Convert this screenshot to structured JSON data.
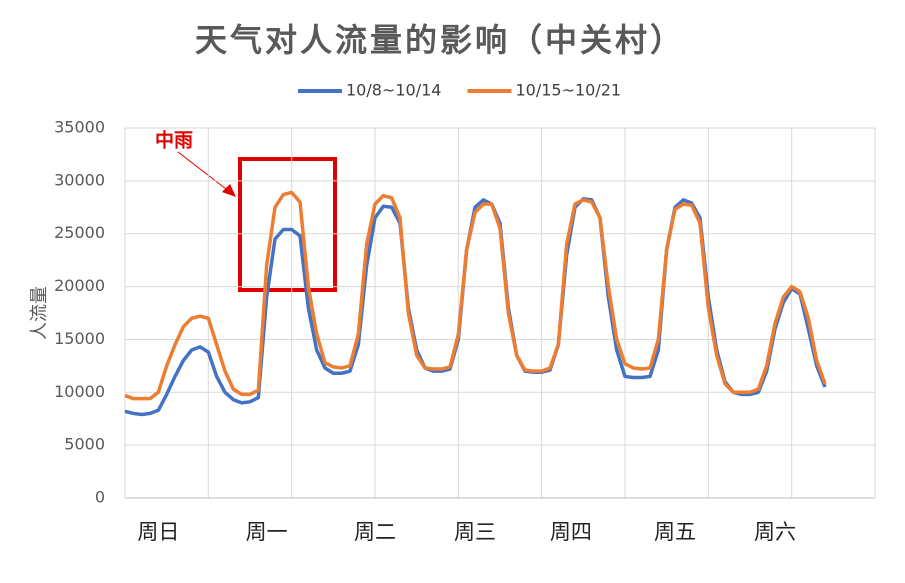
{
  "chart_data": {
    "type": "line",
    "title": "天气对人流量的影响（中关村）",
    "y_label": "人流量",
    "annotation": "中雨",
    "x": [
      0,
      2,
      4,
      6,
      8,
      10,
      12,
      14,
      16,
      18,
      20,
      22,
      24,
      26,
      28,
      30,
      32,
      34,
      36,
      38,
      40,
      42,
      44,
      46,
      48,
      50,
      52,
      54,
      56,
      58,
      60,
      62,
      64,
      66,
      68,
      70,
      72,
      74,
      76,
      78,
      80,
      82,
      84,
      86,
      88,
      90,
      92,
      94,
      96,
      98,
      100,
      102,
      104,
      106,
      108,
      110,
      112,
      114,
      116,
      118,
      120,
      122,
      124,
      126,
      128,
      130,
      132,
      134,
      136,
      138,
      140,
      142,
      144,
      146,
      148,
      150,
      152,
      154,
      156,
      158,
      160,
      162,
      164,
      166,
      168
    ],
    "series": [
      {
        "name": "10/8~10/14",
        "color": "#4472c4",
        "values": [
          8200,
          8000,
          7900,
          8000,
          8300,
          9800,
          11500,
          13000,
          14000,
          14300,
          13800,
          11500,
          10000,
          9300,
          9000,
          9100,
          9500,
          19000,
          24500,
          25400,
          25400,
          24800,
          18000,
          14000,
          12300,
          11800,
          11800,
          12000,
          14500,
          22000,
          26500,
          27600,
          27500,
          26000,
          18000,
          14000,
          12300,
          12000,
          12000,
          12200,
          15000,
          23500,
          27500,
          28200,
          27800,
          26000,
          18000,
          13500,
          12000,
          11900,
          11900,
          12100,
          14500,
          23000,
          27500,
          28300,
          28200,
          26500,
          19000,
          14000,
          11500,
          11400,
          11400,
          11500,
          14000,
          23500,
          27500,
          28200,
          27900,
          26500,
          19000,
          14000,
          11000,
          10000,
          9800,
          9800,
          10000,
          12000,
          16000,
          18500,
          19800,
          19300,
          16000,
          12500,
          10500
        ]
      },
      {
        "name": "10/15~10/21",
        "color": "#ed7d31",
        "values": [
          9700,
          9400,
          9400,
          9400,
          10000,
          12500,
          14500,
          16200,
          17000,
          17200,
          17000,
          14500,
          12000,
          10300,
          9800,
          9800,
          10200,
          22000,
          27500,
          28700,
          28900,
          28000,
          20000,
          15500,
          12800,
          12400,
          12300,
          12500,
          15500,
          24000,
          27800,
          28600,
          28400,
          26500,
          17500,
          13500,
          12300,
          12200,
          12200,
          12400,
          15500,
          23500,
          27000,
          27800,
          27800,
          25500,
          17500,
          13500,
          12100,
          12000,
          12000,
          12300,
          14500,
          24000,
          27800,
          28200,
          28000,
          26500,
          20000,
          15000,
          12700,
          12300,
          12200,
          12300,
          15000,
          23500,
          27300,
          27800,
          27700,
          26000,
          18000,
          13500,
          10800,
          10000,
          10000,
          10000,
          10300,
          12500,
          16500,
          19000,
          20000,
          19500,
          17000,
          13000,
          10800
        ]
      }
    ],
    "xlim": [
      0,
      180
    ],
    "xticks": [
      {
        "value": 8,
        "label": "周日"
      },
      {
        "value": 34,
        "label": "周一"
      },
      {
        "value": 60,
        "label": "周二"
      },
      {
        "value": 84,
        "label": "周三"
      },
      {
        "value": 107,
        "label": "周四"
      },
      {
        "value": 132,
        "label": "周五"
      },
      {
        "value": 156,
        "label": "周六"
      }
    ],
    "xgrid": [
      0,
      20,
      40,
      60,
      80,
      100,
      120,
      140,
      160,
      180
    ],
    "ylim": [
      0,
      35000
    ],
    "yticks": [
      0,
      5000,
      10000,
      15000,
      20000,
      25000,
      30000,
      35000
    ],
    "grid": true,
    "legend": "top"
  }
}
